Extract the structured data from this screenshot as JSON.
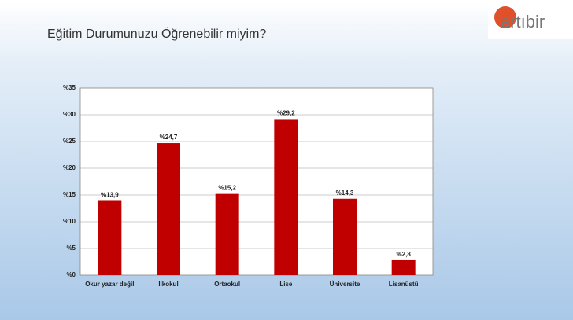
{
  "logo": "artıbir",
  "chart_data": {
    "type": "bar",
    "title": "Eğitim Durumunuzu Öğrenebilir miyim?",
    "categories": [
      "Okur yazar değil",
      "İlkokul",
      "Ortaokul",
      "Lise",
      "Üniversite",
      "Lisanüstü"
    ],
    "values": [
      13.9,
      24.7,
      15.2,
      29.2,
      14.3,
      2.8
    ],
    "value_labels": [
      "%13,9",
      "%24,7",
      "%15,2",
      "%29,2",
      "%14,3",
      "%2,8"
    ],
    "color": "#c00000",
    "ylim": [
      0,
      35
    ],
    "yticks": [
      {
        "value": 0,
        "label": "%0"
      },
      {
        "value": 5,
        "label": "%5"
      },
      {
        "value": 10,
        "label": "%10"
      },
      {
        "value": 15,
        "label": "%15"
      },
      {
        "value": 20,
        "label": "%20"
      },
      {
        "value": 25,
        "label": "%25"
      },
      {
        "value": 30,
        "label": "%30"
      },
      {
        "value": 35,
        "label": "%35"
      }
    ],
    "grid": true
  }
}
